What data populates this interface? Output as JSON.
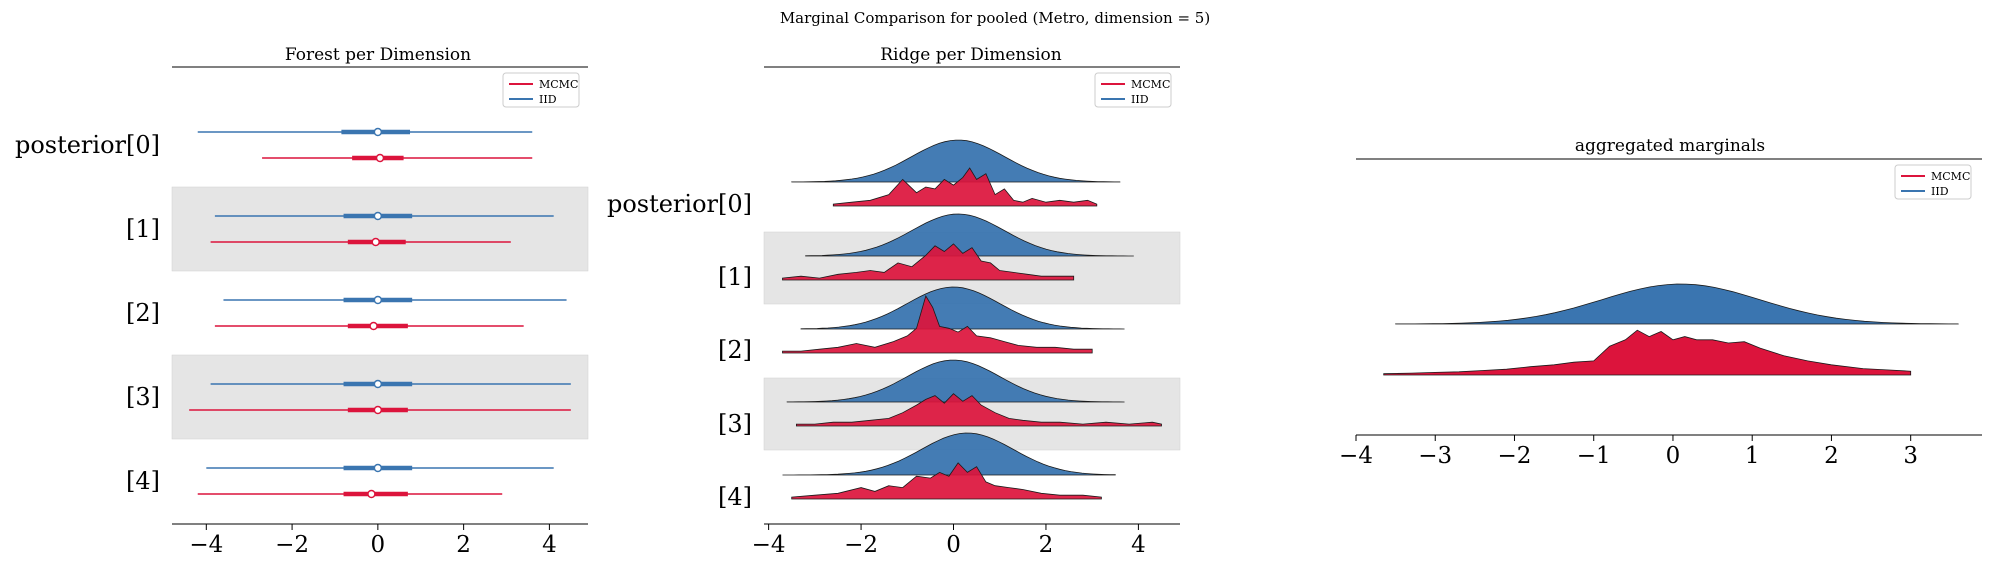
{
  "suptitle": "Marginal Comparison for pooled (Metro, dimension = 5)",
  "colors": {
    "mcmc": "#dc143c",
    "iid": "#3a75b0",
    "band": "#e5e5e5"
  },
  "chart_data": [
    {
      "type": "forest",
      "title": "Forest per Dimension",
      "xlim": [
        -4.8,
        4.9
      ],
      "xticks": [
        -4,
        -2,
        0,
        2,
        4
      ],
      "xtick_labels": [
        "−4",
        "−2",
        "0",
        "2",
        "4"
      ],
      "ylabels": [
        "posterior[0]",
        "[1]",
        "[2]",
        "[3]",
        "[4]"
      ],
      "legend": {
        "position": "top-right",
        "entries": [
          "MCMC",
          "IID"
        ]
      },
      "series": [
        {
          "name": "IID",
          "points": [
            {
              "lo": -4.2,
              "q1": -0.85,
              "median": 0.0,
              "q3": 0.75,
              "hi": 3.6
            },
            {
              "lo": -3.8,
              "q1": -0.8,
              "median": 0.0,
              "q3": 0.8,
              "hi": 4.1
            },
            {
              "lo": -3.6,
              "q1": -0.8,
              "median": 0.0,
              "q3": 0.8,
              "hi": 4.4
            },
            {
              "lo": -3.9,
              "q1": -0.8,
              "median": 0.0,
              "q3": 0.8,
              "hi": 4.5
            },
            {
              "lo": -4.0,
              "q1": -0.8,
              "median": 0.0,
              "q3": 0.8,
              "hi": 4.1
            }
          ]
        },
        {
          "name": "MCMC",
          "points": [
            {
              "lo": -2.7,
              "q1": -0.6,
              "median": 0.05,
              "q3": 0.6,
              "hi": 3.6
            },
            {
              "lo": -3.9,
              "q1": -0.7,
              "median": -0.05,
              "q3": 0.65,
              "hi": 3.1
            },
            {
              "lo": -3.8,
              "q1": -0.7,
              "median": -0.1,
              "q3": 0.7,
              "hi": 3.4
            },
            {
              "lo": -4.4,
              "q1": -0.7,
              "median": 0.0,
              "q3": 0.7,
              "hi": 4.5
            },
            {
              "lo": -4.2,
              "q1": -0.8,
              "median": -0.15,
              "q3": 0.7,
              "hi": 2.9
            }
          ]
        }
      ]
    },
    {
      "type": "area",
      "title": "Ridge per Dimension",
      "xlim": [
        -4.1,
        4.9
      ],
      "xticks": [
        -4,
        -2,
        0,
        2,
        4
      ],
      "xtick_labels": [
        "−4",
        "−2",
        "0",
        "2",
        "4"
      ],
      "ylabels": [
        "posterior[0]",
        "[1]",
        "[2]",
        "[3]",
        "[4]"
      ],
      "legend": {
        "position": "top-right",
        "entries": [
          "MCMC",
          "IID"
        ]
      },
      "rows": [
        {
          "iid": {
            "range": [
              -3.5,
              3.6
            ],
            "peak_x": 0.1
          },
          "mcmc": {
            "x": [
              -2.6,
              -2.2,
              -1.8,
              -1.4,
              -1.1,
              -0.8,
              -0.6,
              -0.4,
              -0.2,
              0.0,
              0.2,
              0.35,
              0.5,
              0.7,
              0.9,
              1.1,
              1.3,
              1.5,
              1.7,
              2.0,
              2.3,
              2.6,
              2.9,
              3.1
            ],
            "y": [
              0.05,
              0.1,
              0.15,
              0.3,
              0.7,
              0.35,
              0.5,
              0.45,
              0.7,
              0.55,
              0.75,
              1.0,
              0.7,
              0.85,
              0.3,
              0.45,
              0.15,
              0.1,
              0.2,
              0.1,
              0.15,
              0.1,
              0.15,
              0.05
            ]
          }
        },
        {
          "iid": {
            "range": [
              -3.2,
              3.9
            ],
            "peak_x": 0.1
          },
          "mcmc": {
            "x": [
              -3.7,
              -3.3,
              -2.9,
              -2.5,
              -2.1,
              -1.8,
              -1.5,
              -1.2,
              -0.9,
              -0.6,
              -0.4,
              -0.2,
              0.0,
              0.2,
              0.4,
              0.6,
              0.8,
              1.0,
              1.3,
              1.6,
              1.9,
              2.3,
              2.6
            ],
            "y": [
              0.05,
              0.1,
              0.05,
              0.15,
              0.2,
              0.25,
              0.2,
              0.45,
              0.35,
              0.65,
              0.9,
              0.75,
              0.95,
              0.7,
              0.85,
              0.5,
              0.45,
              0.25,
              0.2,
              0.15,
              0.1,
              0.1,
              0.1
            ]
          }
        },
        {
          "iid": {
            "range": [
              -3.3,
              3.7
            ],
            "peak_x": 0.0
          },
          "mcmc": {
            "x": [
              -3.7,
              -3.3,
              -2.9,
              -2.5,
              -2.1,
              -1.7,
              -1.3,
              -1.0,
              -0.8,
              -0.6,
              -0.45,
              -0.3,
              -0.1,
              0.1,
              0.3,
              0.5,
              0.8,
              1.1,
              1.4,
              1.8,
              2.2,
              2.6,
              3.0
            ],
            "y": [
              0.05,
              0.05,
              0.1,
              0.15,
              0.25,
              0.15,
              0.3,
              0.45,
              0.65,
              1.5,
              1.2,
              0.7,
              0.65,
              0.55,
              0.7,
              0.45,
              0.4,
              0.3,
              0.2,
              0.15,
              0.15,
              0.1,
              0.1
            ]
          }
        },
        {
          "iid": {
            "range": [
              -3.6,
              3.7
            ],
            "peak_x": 0.0
          },
          "mcmc": {
            "x": [
              -3.4,
              -3.0,
              -2.6,
              -2.2,
              -1.8,
              -1.4,
              -1.1,
              -0.8,
              -0.6,
              -0.4,
              -0.2,
              0.0,
              0.2,
              0.4,
              0.6,
              0.9,
              1.2,
              1.5,
              1.9,
              2.3,
              2.8,
              3.3,
              3.8,
              4.3,
              4.5
            ],
            "y": [
              0.05,
              0.05,
              0.1,
              0.1,
              0.15,
              0.2,
              0.35,
              0.55,
              0.7,
              0.8,
              0.6,
              0.85,
              0.65,
              0.8,
              0.55,
              0.35,
              0.2,
              0.15,
              0.1,
              0.1,
              0.05,
              0.1,
              0.05,
              0.1,
              0.05
            ]
          }
        },
        {
          "iid": {
            "range": [
              -3.7,
              3.5
            ],
            "peak_x": 0.3
          },
          "mcmc": {
            "x": [
              -3.5,
              -3.0,
              -2.5,
              -2.0,
              -1.7,
              -1.4,
              -1.1,
              -0.8,
              -0.5,
              -0.3,
              -0.1,
              0.1,
              0.3,
              0.5,
              0.7,
              0.9,
              1.2,
              1.5,
              1.9,
              2.3,
              2.8,
              3.2
            ],
            "y": [
              0.05,
              0.1,
              0.15,
              0.3,
              0.2,
              0.35,
              0.3,
              0.6,
              0.55,
              0.7,
              0.6,
              0.95,
              0.7,
              0.85,
              0.45,
              0.35,
              0.3,
              0.25,
              0.15,
              0.1,
              0.1,
              0.05
            ]
          }
        }
      ]
    },
    {
      "type": "area",
      "title": "aggregated marginals",
      "xlim": [
        -4.0,
        3.9
      ],
      "xticks": [
        -4,
        -3,
        -2,
        -1,
        0,
        1,
        2,
        3
      ],
      "xtick_labels": [
        "−4",
        "−3",
        "−2",
        "−1",
        "0",
        "1",
        "2",
        "3"
      ],
      "legend": {
        "position": "top-right",
        "entries": [
          "MCMC",
          "IID"
        ]
      },
      "iid": {
        "range": [
          -3.5,
          3.6
        ],
        "peak_x": 0.1
      },
      "mcmc": {
        "x": [
          -3.65,
          -3.3,
          -3.0,
          -2.7,
          -2.4,
          -2.1,
          -1.8,
          -1.5,
          -1.25,
          -1.0,
          -0.8,
          -0.6,
          -0.45,
          -0.3,
          -0.15,
          0.0,
          0.15,
          0.3,
          0.5,
          0.7,
          0.9,
          1.1,
          1.4,
          1.7,
          2.0,
          2.4,
          2.7,
          3.0
        ],
        "y": [
          0.02,
          0.03,
          0.04,
          0.05,
          0.07,
          0.09,
          0.13,
          0.16,
          0.2,
          0.22,
          0.45,
          0.55,
          0.7,
          0.6,
          0.68,
          0.55,
          0.6,
          0.55,
          0.55,
          0.5,
          0.52,
          0.42,
          0.3,
          0.22,
          0.16,
          0.1,
          0.08,
          0.06
        ]
      }
    }
  ]
}
